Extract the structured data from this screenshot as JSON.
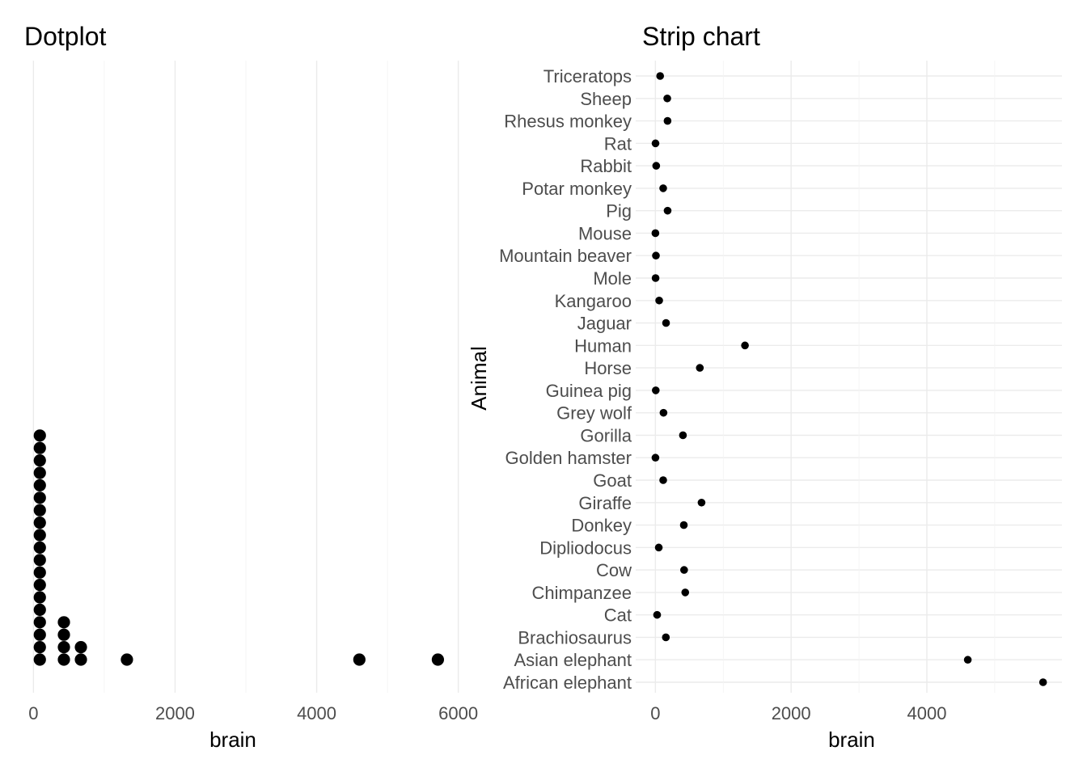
{
  "chart_data": [
    {
      "type": "dotplot",
      "title": "Dotplot",
      "xlabel": "brain",
      "ylabel": "",
      "xlim": [
        -50,
        6050
      ],
      "x_ticks": [
        0,
        2000,
        4000,
        6000
      ],
      "grid": true,
      "bins": [
        {
          "x": 90,
          "count": 19
        },
        {
          "x": 430,
          "count": 4
        },
        {
          "x": 670,
          "count": 2
        },
        {
          "x": 1320,
          "count": 1
        },
        {
          "x": 4603,
          "count": 1
        },
        {
          "x": 5712,
          "count": 1
        }
      ]
    },
    {
      "type": "scatter",
      "title": "Strip chart",
      "xlabel": "brain",
      "ylabel": "Animal",
      "xlim": [
        -290,
        5990
      ],
      "x_ticks": [
        0,
        2000,
        4000
      ],
      "grid": true,
      "categories": [
        "African elephant",
        "Asian elephant",
        "Brachiosaurus",
        "Cat",
        "Chimpanzee",
        "Cow",
        "Dipliodocus",
        "Donkey",
        "Giraffe",
        "Goat",
        "Golden hamster",
        "Gorilla",
        "Grey wolf",
        "Guinea pig",
        "Horse",
        "Human",
        "Jaguar",
        "Kangaroo",
        "Mole",
        "Mountain beaver",
        "Mouse",
        "Pig",
        "Potar monkey",
        "Rabbit",
        "Rat",
        "Rhesus monkey",
        "Sheep",
        "Triceratops"
      ],
      "values": [
        5712,
        4603,
        154.5,
        25.6,
        440,
        423,
        50,
        419,
        680,
        115,
        1,
        406,
        119.5,
        5.5,
        655,
        1320,
        157,
        56,
        3,
        8.1,
        0.4,
        180,
        115,
        12.1,
        1.9,
        179,
        175,
        70
      ]
    }
  ]
}
